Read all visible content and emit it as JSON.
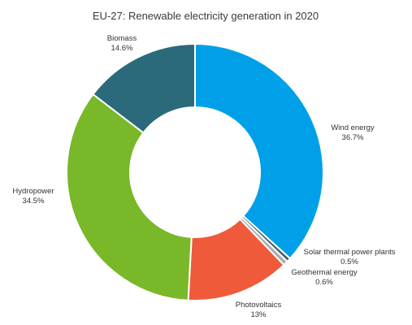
{
  "chart_data": {
    "type": "pie",
    "title": "EU-27: Renewable electricity generation in 2020",
    "slices": [
      {
        "label": "Wind energy",
        "value": 36.7,
        "value_label": "36.7%",
        "color": "#00a0e9"
      },
      {
        "label": "Solar thermal power plants",
        "value": 0.5,
        "value_label": "0.5%",
        "color": "#4a5a62"
      },
      {
        "label": "Geothermal energy",
        "value": 0.6,
        "value_label": "0.6%",
        "color": "#a8b0b3"
      },
      {
        "label": "Photovoltaics",
        "value": 13,
        "value_label": "13%",
        "color": "#ef5a3b"
      },
      {
        "label": "Hydropower",
        "value": 34.5,
        "value_label": "34.5%",
        "color": "#79b829"
      },
      {
        "label": "Biomass",
        "value": 14.6,
        "value_label": "14.6%",
        "color": "#2b6a7a"
      }
    ]
  }
}
